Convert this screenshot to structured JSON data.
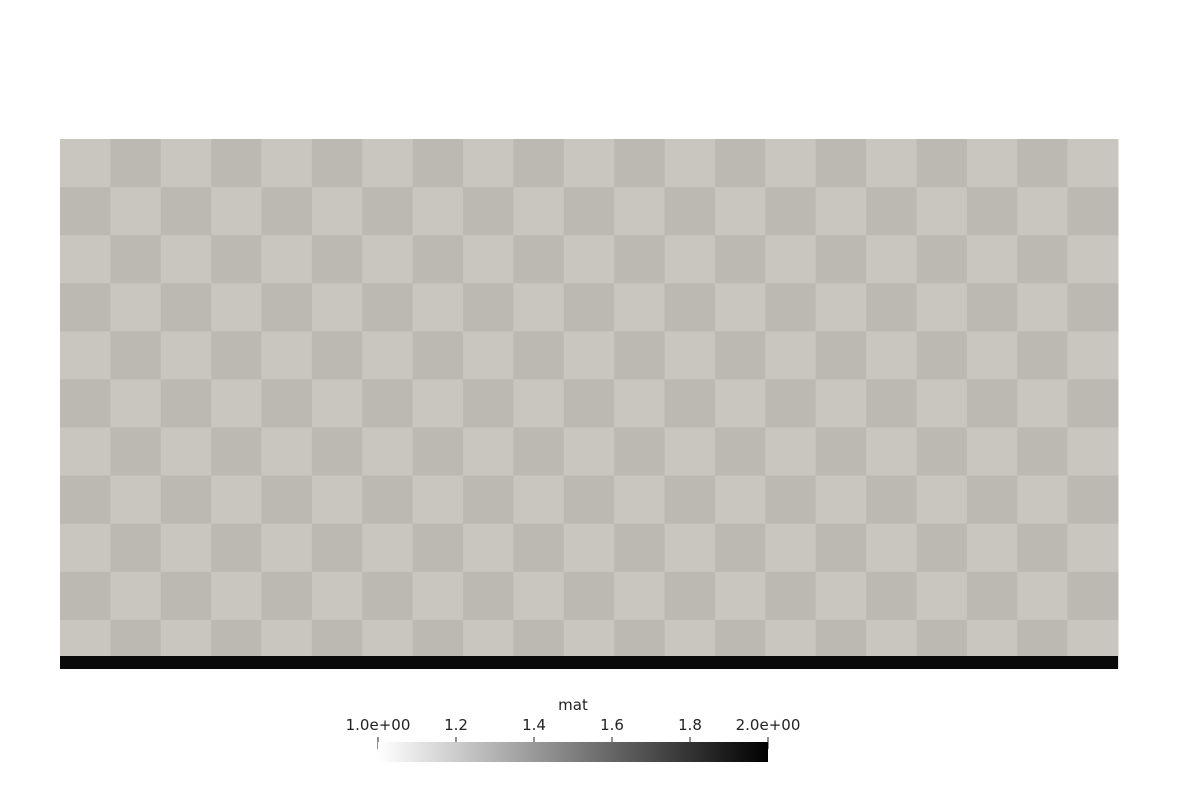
{
  "render": {
    "background_color": "#ffffff",
    "grid": {
      "columns": 21,
      "rows": 11,
      "light_color": "#c8c6bf",
      "dark_color": "#bcb9b2"
    },
    "base_layer_color": "#0a0a0a"
  },
  "scalar_bar": {
    "title": "mat",
    "range": [
      1.0,
      2.0
    ],
    "ticks": [
      {
        "value": 1.0,
        "label": "1.0e+00"
      },
      {
        "value": 1.2,
        "label": "1.2"
      },
      {
        "value": 1.4,
        "label": "1.4"
      },
      {
        "value": 1.6,
        "label": "1.6"
      },
      {
        "value": 1.8,
        "label": "1.8"
      },
      {
        "value": 2.0,
        "label": "2.0e+00"
      }
    ],
    "colormap": {
      "low_color": "#ffffff",
      "high_color": "#000000"
    }
  }
}
